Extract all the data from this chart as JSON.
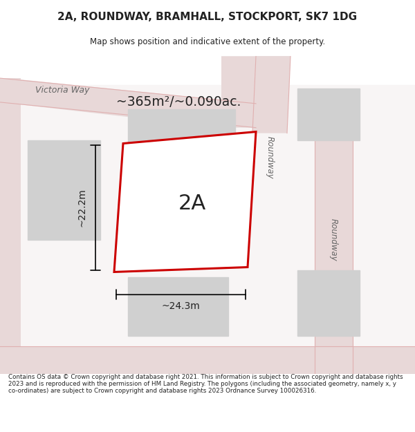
{
  "title": "2A, ROUNDWAY, BRAMHALL, STOCKPORT, SK7 1DG",
  "subtitle": "Map shows position and indicative extent of the property.",
  "footer": "Contains OS data © Crown copyright and database right 2021. This information is subject to Crown copyright and database rights 2023 and is reproduced with the permission of HM Land Registry. The polygons (including the associated geometry, namely x, y co-ordinates) are subject to Crown copyright and database rights 2023 Ordnance Survey 100026316.",
  "area_label": "~365m²/~0.090ac.",
  "plot_label": "2A",
  "width_label": "~24.3m",
  "height_label": "~22.2m",
  "bg_color": "#f2eded",
  "road_color": "#e8d8d8",
  "plot_fill": "#ffffff",
  "plot_border": "#cc0000",
  "building_fill": "#d0d0d0",
  "road_line_color": "#e0b0b0",
  "text_color": "#222222",
  "road_text_color": "#666666"
}
